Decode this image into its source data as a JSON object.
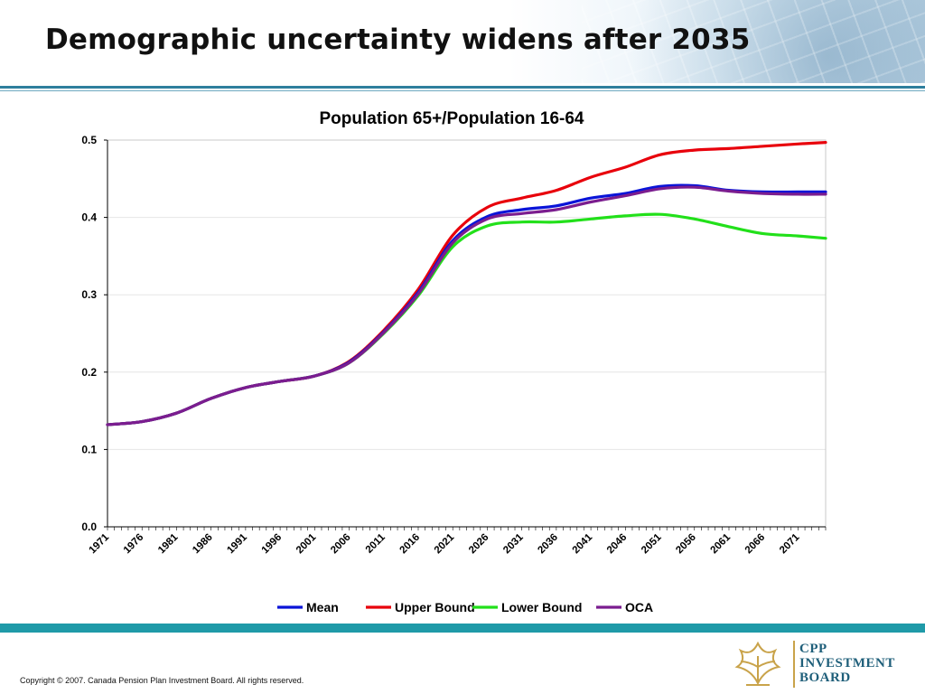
{
  "slide": {
    "title": "Demographic uncertainty widens after 2035",
    "copyright": "Copyright © 2007. Canada Pension Plan Investment Board. All rights reserved.",
    "logo_lines": [
      "CPP",
      "INVESTMENT",
      "BOARD"
    ]
  },
  "colors": {
    "header_rule": "#2f7f9d",
    "footer_rule": "#1f9aa8",
    "logo_text": "#1f5f7a",
    "logo_accent": "#c9a34a"
  },
  "chart_data": {
    "type": "line",
    "title": "Population 65+/Population 16-64",
    "xlabel": "",
    "ylabel": "",
    "x_range": [
      1971,
      2075
    ],
    "ylim": [
      0.0,
      0.5
    ],
    "yticks": [
      0.0,
      0.1,
      0.2,
      0.3,
      0.4,
      0.5
    ],
    "ytick_labels": [
      "0.0",
      "0.1",
      "0.2",
      "0.3",
      "0.4",
      "0.5"
    ],
    "xtick_labels": [
      "1971",
      "1976",
      "1981",
      "1986",
      "1991",
      "1996",
      "2001",
      "2006",
      "2011",
      "2016",
      "2021",
      "2026",
      "2031",
      "2036",
      "2041",
      "2046",
      "2051",
      "2056",
      "2061",
      "2066",
      "2071"
    ],
    "grid": "horizontal",
    "legend_position": "bottom",
    "x": [
      1971,
      1976,
      1981,
      1986,
      1991,
      1996,
      2001,
      2006,
      2011,
      2016,
      2021,
      2026,
      2031,
      2036,
      2041,
      2046,
      2051,
      2056,
      2061,
      2066,
      2071,
      2075
    ],
    "series": [
      {
        "name": "Mean",
        "color": "#0a14d8",
        "values": [
          0.132,
          0.136,
          0.147,
          0.166,
          0.18,
          0.188,
          0.195,
          0.213,
          0.252,
          0.303,
          0.37,
          0.401,
          0.41,
          0.415,
          0.425,
          0.431,
          0.44,
          0.441,
          0.435,
          0.433,
          0.433,
          0.433
        ]
      },
      {
        "name": "Upper Bound",
        "color": "#e8000b",
        "values": [
          0.132,
          0.136,
          0.147,
          0.166,
          0.18,
          0.188,
          0.195,
          0.214,
          0.254,
          0.307,
          0.377,
          0.413,
          0.425,
          0.435,
          0.452,
          0.465,
          0.481,
          0.487,
          0.489,
          0.492,
          0.495,
          0.497
        ]
      },
      {
        "name": "Lower Bound",
        "color": "#22e01a",
        "values": [
          0.132,
          0.136,
          0.147,
          0.166,
          0.18,
          0.188,
          0.195,
          0.212,
          0.25,
          0.299,
          0.362,
          0.389,
          0.394,
          0.394,
          0.398,
          0.402,
          0.404,
          0.398,
          0.388,
          0.379,
          0.376,
          0.373
        ]
      },
      {
        "name": "OCA",
        "color": "#7b1d8f",
        "values": [
          0.132,
          0.136,
          0.147,
          0.166,
          0.18,
          0.188,
          0.195,
          0.212,
          0.251,
          0.301,
          0.367,
          0.398,
          0.405,
          0.41,
          0.42,
          0.428,
          0.437,
          0.439,
          0.434,
          0.431,
          0.43,
          0.43
        ]
      }
    ]
  }
}
